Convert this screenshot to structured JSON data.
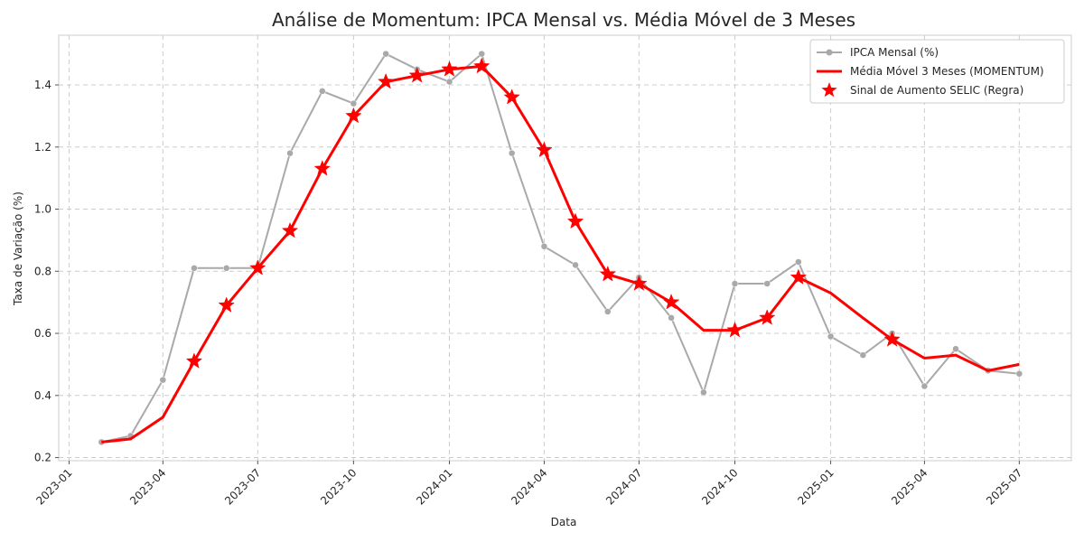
{
  "chart_data": {
    "type": "line",
    "title": "Análise de Momentum: IPCA Mensal vs. Média Móvel de 3 Meses",
    "xlabel": "Data",
    "ylabel": "Taxa de Variação (%)",
    "x_ticks": [
      "2023-01",
      "2023-04",
      "2023-07",
      "2023-10",
      "2024-01",
      "2024-04",
      "2024-07",
      "2024-10",
      "2025-01",
      "2025-04",
      "2025-07"
    ],
    "y_ticks": [
      0.2,
      0.4,
      0.6,
      0.8,
      1.0,
      1.2,
      1.4
    ],
    "ylim": [
      0.19,
      1.56
    ],
    "xlim": [
      "2022-12-22",
      "2025-08-20"
    ],
    "grid": true,
    "legend_position": "top-right",
    "x": [
      "2023-02",
      "2023-03",
      "2023-04",
      "2023-05",
      "2023-06",
      "2023-07",
      "2023-08",
      "2023-09",
      "2023-10",
      "2023-11",
      "2023-12",
      "2024-01",
      "2024-02",
      "2024-03",
      "2024-04",
      "2024-05",
      "2024-06",
      "2024-07",
      "2024-08",
      "2024-09",
      "2024-10",
      "2024-11",
      "2024-12",
      "2025-01",
      "2025-02",
      "2025-03",
      "2025-04",
      "2025-05",
      "2025-06",
      "2025-07"
    ],
    "series": [
      {
        "name": "IPCA Mensal (%)",
        "color": "#a9a9a9",
        "values": [
          0.25,
          0.27,
          0.45,
          0.81,
          0.81,
          0.81,
          1.18,
          1.38,
          1.34,
          1.5,
          1.45,
          1.41,
          1.5,
          1.18,
          0.88,
          0.82,
          0.67,
          0.78,
          0.65,
          0.41,
          0.76,
          0.76,
          0.83,
          0.59,
          0.53,
          0.6,
          0.43,
          0.55,
          0.48,
          0.47
        ]
      },
      {
        "name": "Média Móvel 3 Meses (MOMENTUM)",
        "color": "#ff0000",
        "values": [
          0.25,
          0.26,
          0.33,
          0.51,
          0.69,
          0.81,
          0.93,
          1.13,
          1.3,
          1.41,
          1.43,
          1.45,
          1.46,
          1.36,
          1.19,
          0.96,
          0.79,
          0.76,
          0.7,
          0.61,
          0.61,
          0.65,
          0.78,
          0.73,
          0.65,
          0.58,
          0.52,
          0.53,
          0.48,
          0.5
        ]
      }
    ],
    "markers": {
      "name": "Sinal de Aumento SELIC (Regra)",
      "color": "#ff0000",
      "x": [
        "2023-05",
        "2023-06",
        "2023-07",
        "2023-08",
        "2023-09",
        "2023-10",
        "2023-11",
        "2023-12",
        "2024-01",
        "2024-02",
        "2024-03",
        "2024-04",
        "2024-05",
        "2024-06",
        "2024-07",
        "2024-08",
        "2024-10",
        "2024-11",
        "2024-12",
        "2025-03"
      ],
      "values": [
        0.51,
        0.69,
        0.81,
        0.93,
        1.13,
        1.3,
        1.41,
        1.43,
        1.45,
        1.46,
        1.36,
        1.19,
        0.96,
        0.79,
        0.76,
        0.7,
        0.61,
        0.65,
        0.78,
        0.58
      ]
    }
  }
}
